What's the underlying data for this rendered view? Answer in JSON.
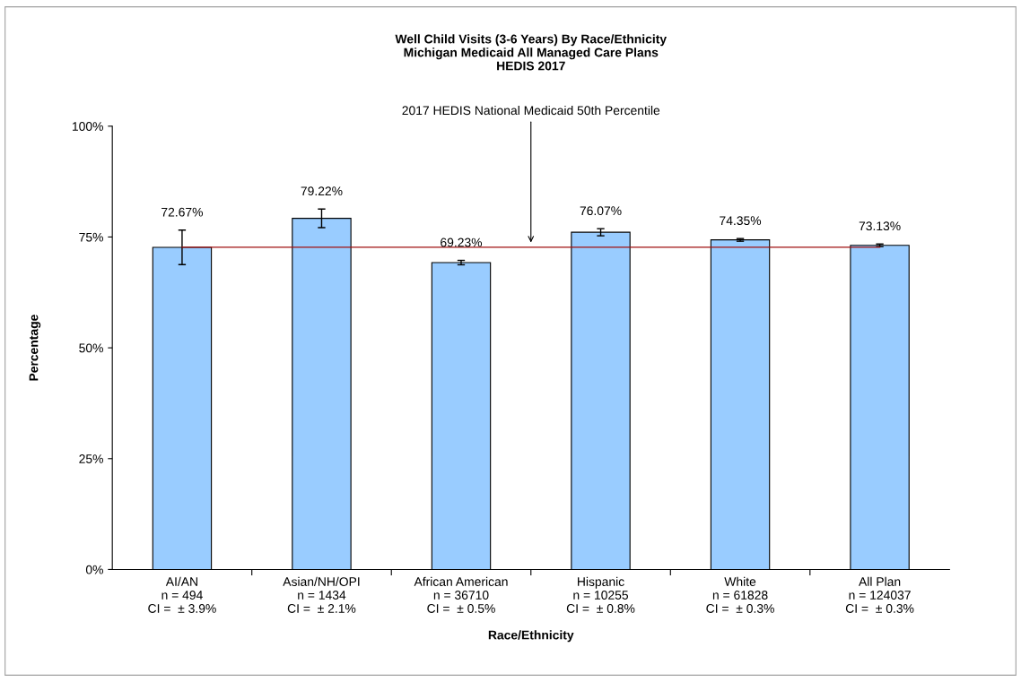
{
  "chart_data": {
    "type": "bar",
    "title": "Well Child Visits (3-6 Years) By Race/Ethnicity\nMichigan Medicaid All Managed Care Plans\nHEDIS 2017",
    "xlabel": "Race/Ethnicity",
    "ylabel": "Percentage",
    "categories": [
      "AI/AN\nn = 494\nCI =  ± 3.9%",
      "Asian/NH/OPI\nn = 1434\nCI =  ± 2.1%",
      "African American\nn = 36710\nCI =  ± 0.5%",
      "Hispanic\nn = 10255\nCI =  ± 0.8%",
      "White\nn = 61828\nCI =  ± 0.3%",
      "All Plan\nn = 124037\nCI =  ± 0.3%"
    ],
    "values": [
      72.67,
      79.22,
      69.23,
      76.07,
      74.35,
      73.13
    ],
    "errors": [
      3.9,
      2.1,
      0.5,
      0.8,
      0.3,
      0.3
    ],
    "value_labels": [
      "72.67%",
      "79.22%",
      "69.23%",
      "76.07%",
      "74.35%",
      "73.13%"
    ],
    "color": "#99ccff",
    "ylim": [
      0,
      100
    ],
    "yticks": [
      {
        "value": 0,
        "label": "0%"
      },
      {
        "value": 25,
        "label": "25%"
      },
      {
        "value": 50,
        "label": "50%"
      },
      {
        "value": 75,
        "label": "75%"
      },
      {
        "value": 100,
        "label": "100%"
      }
    ],
    "ref_lines": [
      {
        "axis": "y",
        "value": 72.7,
        "label": "2017 HEDIS National Medicaid 50th Percentile",
        "color": "#a01010"
      }
    ],
    "grid": false,
    "legend": false
  }
}
